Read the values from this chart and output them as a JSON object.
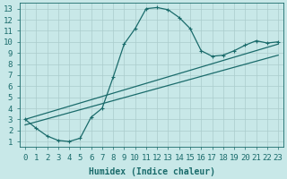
{
  "xlabel": "Humidex (Indice chaleur)",
  "bg_color": "#c8e8e8",
  "grid_color": "#aacccc",
  "line_color": "#1a6b6b",
  "xlim": [
    -0.5,
    23.5
  ],
  "ylim": [
    0.5,
    13.5
  ],
  "xticks": [
    0,
    1,
    2,
    3,
    4,
    5,
    6,
    7,
    8,
    9,
    10,
    11,
    12,
    13,
    14,
    15,
    16,
    17,
    18,
    19,
    20,
    21,
    22,
    23
  ],
  "yticks": [
    1,
    2,
    3,
    4,
    5,
    6,
    7,
    8,
    9,
    10,
    11,
    12,
    13
  ],
  "curve_x": [
    0,
    1,
    2,
    3,
    4,
    5,
    6,
    7,
    8,
    9,
    10,
    11,
    12,
    13,
    14,
    15,
    16,
    17,
    18,
    19,
    20,
    21,
    22,
    23
  ],
  "curve_y": [
    3.0,
    2.2,
    1.5,
    1.1,
    1.0,
    1.3,
    3.2,
    4.0,
    6.8,
    9.8,
    11.2,
    13.0,
    13.1,
    12.9,
    12.2,
    11.2,
    9.2,
    8.7,
    8.8,
    9.2,
    9.7,
    10.1,
    9.9,
    10.0
  ],
  "line2_x": [
    0,
    23
  ],
  "line2_y": [
    3.0,
    9.8
  ],
  "line3_x": [
    0,
    23
  ],
  "line3_y": [
    2.5,
    8.8
  ],
  "fontsize_label": 7,
  "fontsize_tick": 6.5
}
